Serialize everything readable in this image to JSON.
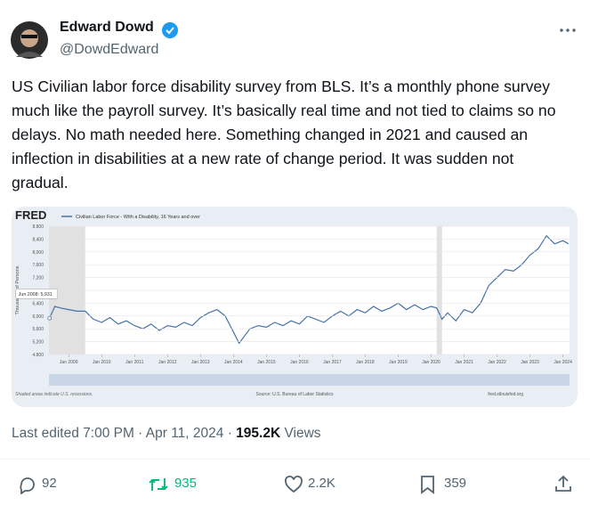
{
  "tweet": {
    "author": {
      "name": "Edward Dowd",
      "handle": "@DowdEdward"
    },
    "text": "US Civilian labor force disability survey from BLS. It’s a monthly phone survey much like the payroll survey. It’s basically real time and not tied to claims so no delays. No math needed here. Something changed in 2021 and caused an inflection in disabilities at a new rate of change period. It was sudden not gradual.",
    "meta": {
      "edited": "Last edited 7:00 PM · Apr 11, 2024 · ",
      "views": "195.2K",
      "views_label": "Views"
    },
    "actions": {
      "replies": "92",
      "reposts": "935",
      "likes": "2.2K",
      "bookmarks": "359"
    }
  },
  "chart_data": {
    "type": "line",
    "logo": "FRED",
    "series": [
      {
        "name": "Civilian Labor Force - With a Disability, 16 Years and over",
        "color": "#4572a7",
        "x": [
          2008.42,
          2008.58,
          2008.75,
          2009.0,
          2009.25,
          2009.5,
          2009.75,
          2010.0,
          2010.25,
          2010.5,
          2010.75,
          2011.0,
          2011.25,
          2011.5,
          2011.75,
          2012.0,
          2012.25,
          2012.5,
          2012.75,
          2013.0,
          2013.25,
          2013.5,
          2013.75,
          2014.0,
          2014.17,
          2014.5,
          2014.75,
          2015.0,
          2015.25,
          2015.5,
          2015.75,
          2016.0,
          2016.25,
          2016.5,
          2016.75,
          2017.0,
          2017.25,
          2017.5,
          2017.75,
          2018.0,
          2018.25,
          2018.5,
          2018.75,
          2019.0,
          2019.25,
          2019.5,
          2019.75,
          2020.0,
          2020.17,
          2020.33,
          2020.5,
          2020.75,
          2021.0,
          2021.25,
          2021.5,
          2021.75,
          2022.0,
          2022.25,
          2022.5,
          2022.75,
          2023.0,
          2023.25,
          2023.5,
          2023.75,
          2024.0,
          2024.17
        ],
        "values": [
          5931,
          6300,
          6250,
          6200,
          6150,
          6150,
          5900,
          5800,
          5950,
          5750,
          5850,
          5700,
          5600,
          5750,
          5550,
          5700,
          5650,
          5800,
          5700,
          5950,
          6100,
          6200,
          6000,
          5500,
          5150,
          5600,
          5700,
          5650,
          5800,
          5700,
          5850,
          5750,
          6000,
          5900,
          5800,
          6000,
          6150,
          6000,
          6200,
          6100,
          6300,
          6150,
          6250,
          6400,
          6200,
          6350,
          6200,
          6300,
          6250,
          5900,
          6100,
          5850,
          6200,
          6100,
          6400,
          6950,
          7200,
          7450,
          7400,
          7600,
          7900,
          8100,
          8500,
          8250,
          8350,
          8250
        ]
      }
    ],
    "ylabel": "Thousands of Persons",
    "xlim": [
      2008.4,
      2024.2
    ],
    "xticks": [
      {
        "value": 2009,
        "label": "Jan 2009"
      },
      {
        "value": 2010,
        "label": "Jan 2010"
      },
      {
        "value": 2011,
        "label": "Jan 2011"
      },
      {
        "value": 2012,
        "label": "Jan 2012"
      },
      {
        "value": 2013,
        "label": "Jan 2013"
      },
      {
        "value": 2014,
        "label": "Jan 2014"
      },
      {
        "value": 2015,
        "label": "Jan 2015"
      },
      {
        "value": 2016,
        "label": "Jan 2016"
      },
      {
        "value": 2017,
        "label": "Jan 2017"
      },
      {
        "value": 2018,
        "label": "Jan 2018"
      },
      {
        "value": 2019,
        "label": "Jan 2019"
      },
      {
        "value": 2020,
        "label": "Jan 2020"
      },
      {
        "value": 2021,
        "label": "Jan 2021"
      },
      {
        "value": 2022,
        "label": "Jan 2022"
      },
      {
        "value": 2023,
        "label": "Jan 2023"
      },
      {
        "value": 2024,
        "label": "Jan 2024"
      }
    ],
    "ylim": [
      4800,
      8800
    ],
    "yticks": [
      {
        "value": 4800,
        "label": "4,800"
      },
      {
        "value": 5200,
        "label": "5,200"
      },
      {
        "value": 5600,
        "label": "5,600"
      },
      {
        "value": 6000,
        "label": "6,000"
      },
      {
        "value": 6400,
        "label": "6,400"
      },
      {
        "value": 6800,
        "label": "6,800"
      },
      {
        "value": 7200,
        "label": "7,200"
      },
      {
        "value": 7600,
        "label": "7,600"
      },
      {
        "value": 8000,
        "label": "8,000"
      },
      {
        "value": 8400,
        "label": "8,400"
      },
      {
        "value": 8800,
        "label": "8,800"
      }
    ],
    "grid": true,
    "recessions": [
      [
        2007.92,
        2009.5
      ],
      [
        2020.17,
        2020.33
      ]
    ],
    "annotation": "Jun 2008: 5,931",
    "recession_note": "Shaded areas indicate U.S. recessions.",
    "source": "Source: U.S. Bureau of Labor Statistics",
    "site": "fred.stlouisfed.org"
  }
}
